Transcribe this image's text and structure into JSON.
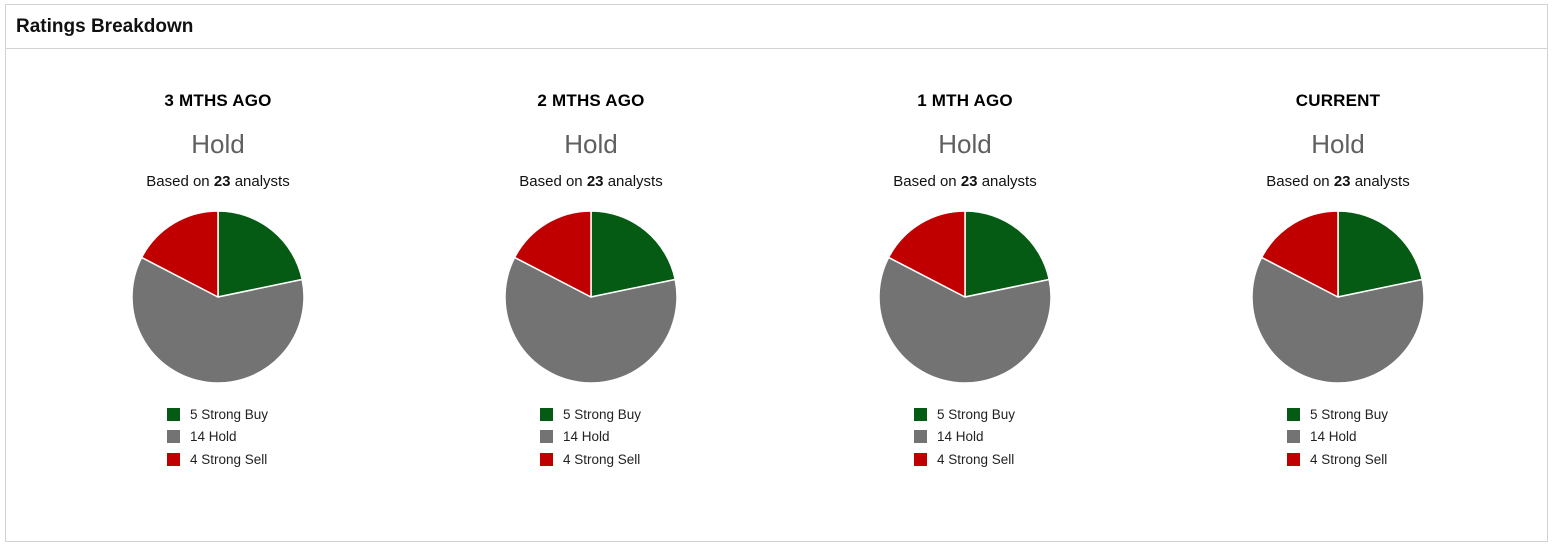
{
  "header": {
    "title": "Ratings Breakdown"
  },
  "colors": {
    "strong_buy": "#055a14",
    "hold": "#737373",
    "strong_sell": "#c00000"
  },
  "chart_data": [
    {
      "type": "pie",
      "title": "3 MTHS AGO",
      "consensus": "Hold",
      "basis_prefix": "Based on",
      "analyst_count": "23",
      "basis_suffix": "analysts",
      "slices": [
        {
          "label": "5 Strong Buy",
          "value": 5,
          "color": "#055a14"
        },
        {
          "label": "14 Hold",
          "value": 14,
          "color": "#737373"
        },
        {
          "label": "4 Strong Sell",
          "value": 4,
          "color": "#c00000"
        }
      ]
    },
    {
      "type": "pie",
      "title": "2 MTHS AGO",
      "consensus": "Hold",
      "basis_prefix": "Based on",
      "analyst_count": "23",
      "basis_suffix": "analysts",
      "slices": [
        {
          "label": "5 Strong Buy",
          "value": 5,
          "color": "#055a14"
        },
        {
          "label": "14 Hold",
          "value": 14,
          "color": "#737373"
        },
        {
          "label": "4 Strong Sell",
          "value": 4,
          "color": "#c00000"
        }
      ]
    },
    {
      "type": "pie",
      "title": "1 MTH AGO",
      "consensus": "Hold",
      "basis_prefix": "Based on",
      "analyst_count": "23",
      "basis_suffix": "analysts",
      "slices": [
        {
          "label": "5 Strong Buy",
          "value": 5,
          "color": "#055a14"
        },
        {
          "label": "14 Hold",
          "value": 14,
          "color": "#737373"
        },
        {
          "label": "4 Strong Sell",
          "value": 4,
          "color": "#c00000"
        }
      ]
    },
    {
      "type": "pie",
      "title": "CURRENT",
      "consensus": "Hold",
      "basis_prefix": "Based on",
      "analyst_count": "23",
      "basis_suffix": "analysts",
      "slices": [
        {
          "label": "5 Strong Buy",
          "value": 5,
          "color": "#055a14"
        },
        {
          "label": "14 Hold",
          "value": 14,
          "color": "#737373"
        },
        {
          "label": "4 Strong Sell",
          "value": 4,
          "color": "#c00000"
        }
      ]
    }
  ]
}
